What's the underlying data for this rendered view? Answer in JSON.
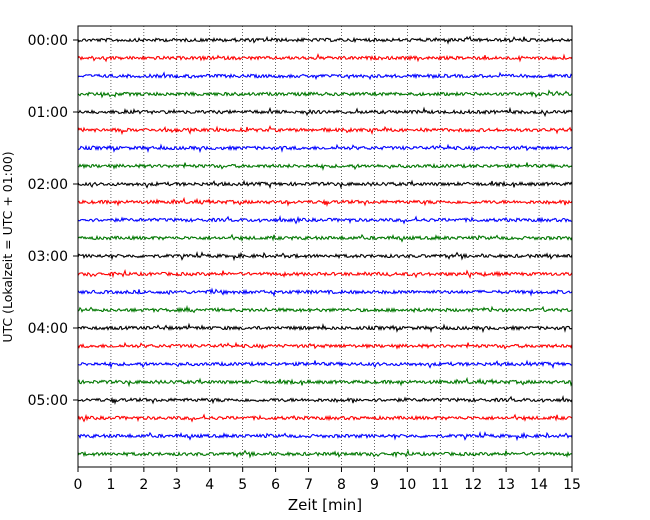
{
  "chart_data": {
    "type": "line",
    "title": "",
    "xlabel": "Zeit  [min]",
    "ylabel": "UTC (Lokalzeit = UTC + 01:00)",
    "xlim": [
      0,
      15
    ],
    "x_ticks": [
      "0",
      "1",
      "2",
      "3",
      "4",
      "5",
      "6",
      "7",
      "8",
      "9",
      "10",
      "11",
      "12",
      "13",
      "14",
      "15"
    ],
    "y_tick_labels": [
      "00:00",
      "01:00",
      "02:00",
      "03:00",
      "04:00",
      "05:00"
    ],
    "minutes_per_trace": 15,
    "grid": "vertical-dotted",
    "trace_colors": [
      "#000000",
      "#ff0000",
      "#0000ff",
      "#007700"
    ],
    "traces": [
      {
        "start": "00:00"
      },
      {
        "start": "00:15"
      },
      {
        "start": "00:30"
      },
      {
        "start": "00:45"
      },
      {
        "start": "01:00"
      },
      {
        "start": "01:15"
      },
      {
        "start": "01:30"
      },
      {
        "start": "01:45"
      },
      {
        "start": "02:00"
      },
      {
        "start": "02:15"
      },
      {
        "start": "02:30"
      },
      {
        "start": "02:45"
      },
      {
        "start": "03:00"
      },
      {
        "start": "03:15"
      },
      {
        "start": "03:30"
      },
      {
        "start": "03:45"
      },
      {
        "start": "04:00"
      },
      {
        "start": "04:15"
      },
      {
        "start": "04:30"
      },
      {
        "start": "04:45"
      },
      {
        "start": "05:00"
      },
      {
        "start": "05:15"
      },
      {
        "start": "05:30"
      },
      {
        "start": "05:45"
      }
    ]
  }
}
